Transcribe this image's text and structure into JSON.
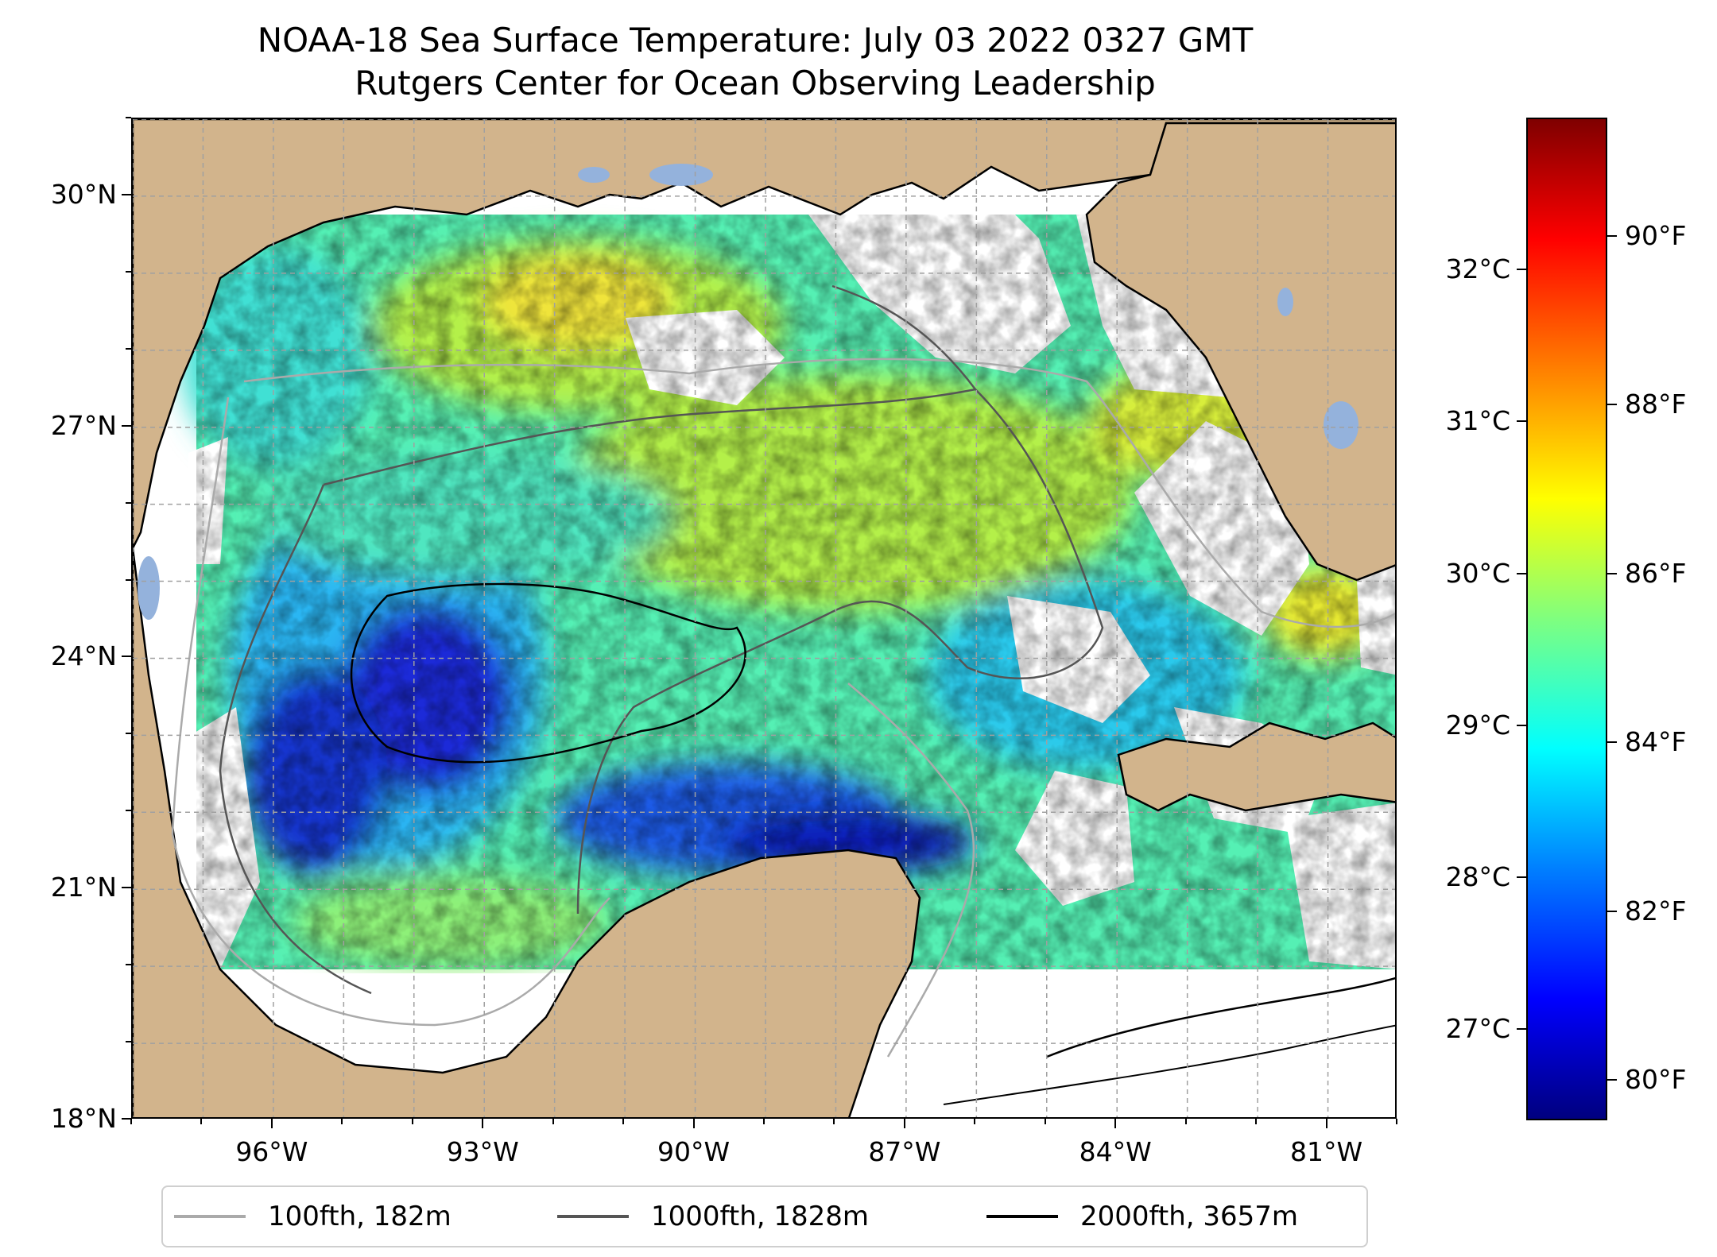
{
  "title": {
    "line1": "NOAA-18 Sea Surface Temperature: July 03 2022 0327 GMT",
    "line2": "Rutgers Center for Ocean Observing Leadership"
  },
  "map": {
    "projection": "lon-lat",
    "lon_range": [
      -98.0,
      -80.0
    ],
    "lat_range": [
      18.0,
      31.0
    ],
    "gridlines": true,
    "land_color": "#d2b48c",
    "lake_color": "#94b2dc",
    "no_data_color": "#ffffff",
    "lat_ticks": [
      {
        "value": 30,
        "label": "30°N"
      },
      {
        "value": 27,
        "label": "27°N"
      },
      {
        "value": 24,
        "label": "24°N"
      },
      {
        "value": 21,
        "label": "21°N"
      },
      {
        "value": 18,
        "label": "18°N"
      }
    ],
    "lon_ticks": [
      {
        "value": -96,
        "label": "96°W"
      },
      {
        "value": -93,
        "label": "93°W"
      },
      {
        "value": -90,
        "label": "90°W"
      },
      {
        "value": -87,
        "label": "87°W"
      },
      {
        "value": -84,
        "label": "84°W"
      },
      {
        "value": -81,
        "label": "81°W"
      }
    ]
  },
  "colorbar": {
    "colormap": "jet",
    "range_c": [
      26.4,
      33.0
    ],
    "celsius_ticks": [
      {
        "value": 27,
        "label": "27°C"
      },
      {
        "value": 28,
        "label": "28°C"
      },
      {
        "value": 29,
        "label": "29°C"
      },
      {
        "value": 30,
        "label": "30°C"
      },
      {
        "value": 31,
        "label": "31°C"
      },
      {
        "value": 32,
        "label": "32°C"
      }
    ],
    "fahrenheit_ticks": [
      {
        "value": 80,
        "label": "80°F"
      },
      {
        "value": 82,
        "label": "82°F"
      },
      {
        "value": 84,
        "label": "84°F"
      },
      {
        "value": 86,
        "label": "86°F"
      },
      {
        "value": 88,
        "label": "88°F"
      },
      {
        "value": 90,
        "label": "90°F"
      }
    ]
  },
  "legend": {
    "items": [
      {
        "label": "100fth, 182m",
        "color": "#aaaaaa"
      },
      {
        "label": "1000fth, 1828m",
        "color": "#555555"
      },
      {
        "label": "2000fth, 3657m",
        "color": "#000000"
      }
    ]
  }
}
